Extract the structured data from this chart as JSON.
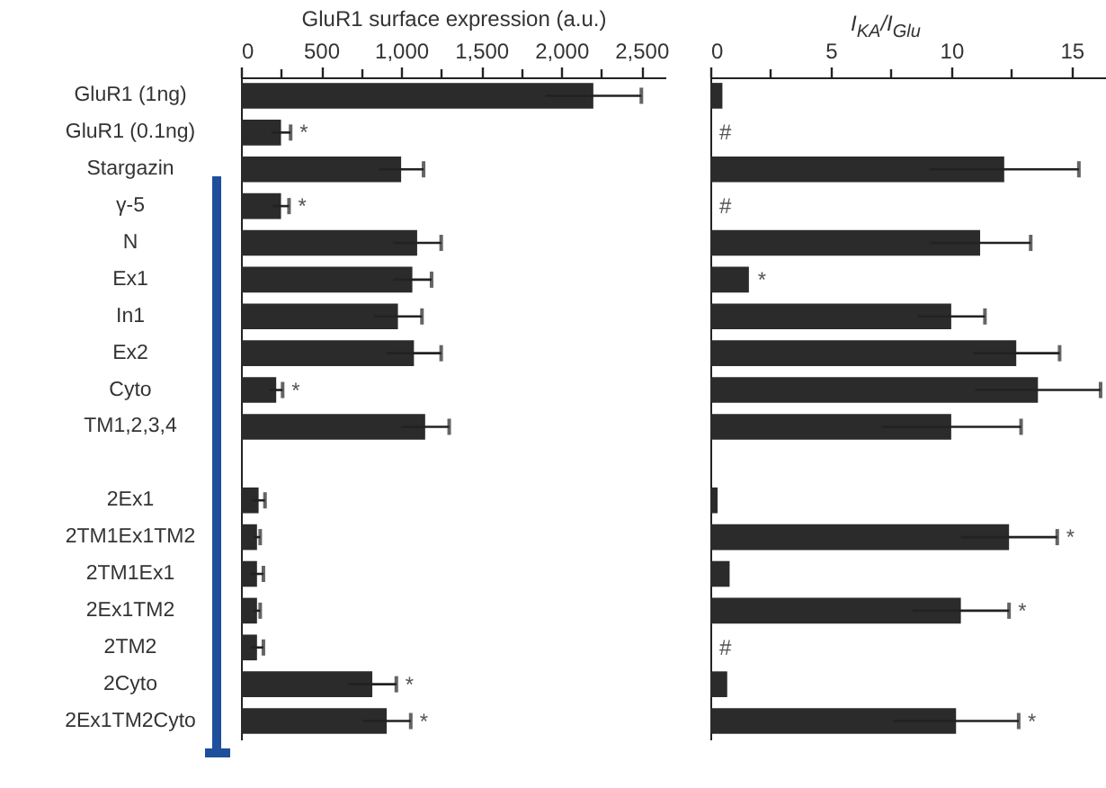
{
  "chart_data": [
    {
      "type": "bar",
      "orientation": "horizontal",
      "xlabel": "GluR1 surface expression (a.u.)",
      "categories": [
        "GluR1 (1ng)",
        "GluR1 (0.1ng)",
        "Stargazin",
        "γ-5",
        "N",
        "Ex1",
        "In1",
        "Ex2",
        "Cyto",
        "TM1,2,3,4",
        null,
        "2Ex1",
        "2TM1Ex1TM2",
        "2TM1Ex1",
        "2Ex1TM2",
        "2TM2",
        "2Cyto",
        "2Ex1TM2Cyto"
      ],
      "values": [
        2200,
        250,
        1000,
        250,
        1100,
        1070,
        980,
        1080,
        220,
        1150,
        null,
        110,
        100,
        100,
        100,
        100,
        820,
        910
      ],
      "errors": [
        300,
        60,
        140,
        50,
        150,
        120,
        150,
        170,
        40,
        150,
        null,
        40,
        20,
        40,
        20,
        40,
        150,
        150
      ],
      "color": "#2b2b2b",
      "xlim": [
        0,
        2650
      ],
      "xticks": [
        0,
        {
          "value": 250,
          "label": null
        },
        500,
        {
          "value": 750,
          "label": null
        },
        {
          "value": 1000,
          "label": "1,000"
        },
        {
          "value": 1250,
          "label": null
        },
        {
          "value": 1500,
          "label": "1,500"
        },
        {
          "value": 1750,
          "label": null
        },
        {
          "value": 2000,
          "label": "2,000"
        },
        {
          "value": 2250,
          "label": null
        },
        {
          "value": 2500,
          "label": "2,500"
        }
      ],
      "annotations": [
        {
          "text": "*",
          "x": 310,
          "y": "GluR1 (0.1ng)"
        },
        {
          "text": "*",
          "x": 300,
          "y": "γ-5"
        },
        {
          "text": "*",
          "x": 260,
          "y": "Cyto"
        },
        {
          "text": "*",
          "x": 970,
          "y": "2Cyto"
        },
        {
          "text": "*",
          "x": 1060,
          "y": "2Ex1TM2Cyto"
        }
      ],
      "grid": false
    },
    {
      "type": "bar",
      "orientation": "horizontal",
      "xlabel": "I$_{KA}$/I$_{Glu}$",
      "categories": [
        "GluR1 (1ng)",
        "GluR1 (0.1ng)",
        "Stargazin",
        "γ-5",
        "N",
        "Ex1",
        "In1",
        "Ex2",
        "Cyto",
        "TM1,2,3,4",
        null,
        "2Ex1",
        "2TM1Ex1TM2",
        "2TM1Ex1",
        "2Ex1TM2",
        "2TM2",
        "2Cyto",
        "2Ex1TM2Cyto"
      ],
      "values": [
        0.5,
        0,
        12.2,
        0,
        11.2,
        1.6,
        10.0,
        12.7,
        13.6,
        10.0,
        null,
        0.3,
        12.4,
        0.8,
        10.4,
        0,
        0.7,
        10.2
      ],
      "value_labels": [
        null,
        "#",
        null,
        "#",
        null,
        null,
        null,
        null,
        null,
        null,
        null,
        null,
        null,
        null,
        null,
        "#",
        null,
        null
      ],
      "errors": [
        null,
        null,
        3.1,
        null,
        2.1,
        null,
        1.4,
        1.8,
        2.6,
        2.9,
        null,
        null,
        2.0,
        null,
        2.0,
        null,
        null,
        2.6
      ],
      "color": "#2b2b2b",
      "xlim": [
        0,
        16.5
      ],
      "xticks": [
        0,
        {
          "value": 2.5,
          "label": null
        },
        5,
        {
          "value": 7.5,
          "label": null
        },
        10,
        {
          "value": 12.5,
          "label": null
        },
        15
      ],
      "tick_labels": "x",
      "annotations": [
        {
          "text": "*",
          "x": 1.6,
          "y": "Ex1"
        },
        {
          "text": "*",
          "x": 14.4,
          "y": "2TM1Ex1TM2"
        },
        {
          "text": "*",
          "x": 12.4,
          "y": "2Ex1TM2"
        },
        {
          "text": "*",
          "x": 12.8,
          "y": "2Ex1TM2Cyto"
        }
      ],
      "grid": false
    }
  ]
}
